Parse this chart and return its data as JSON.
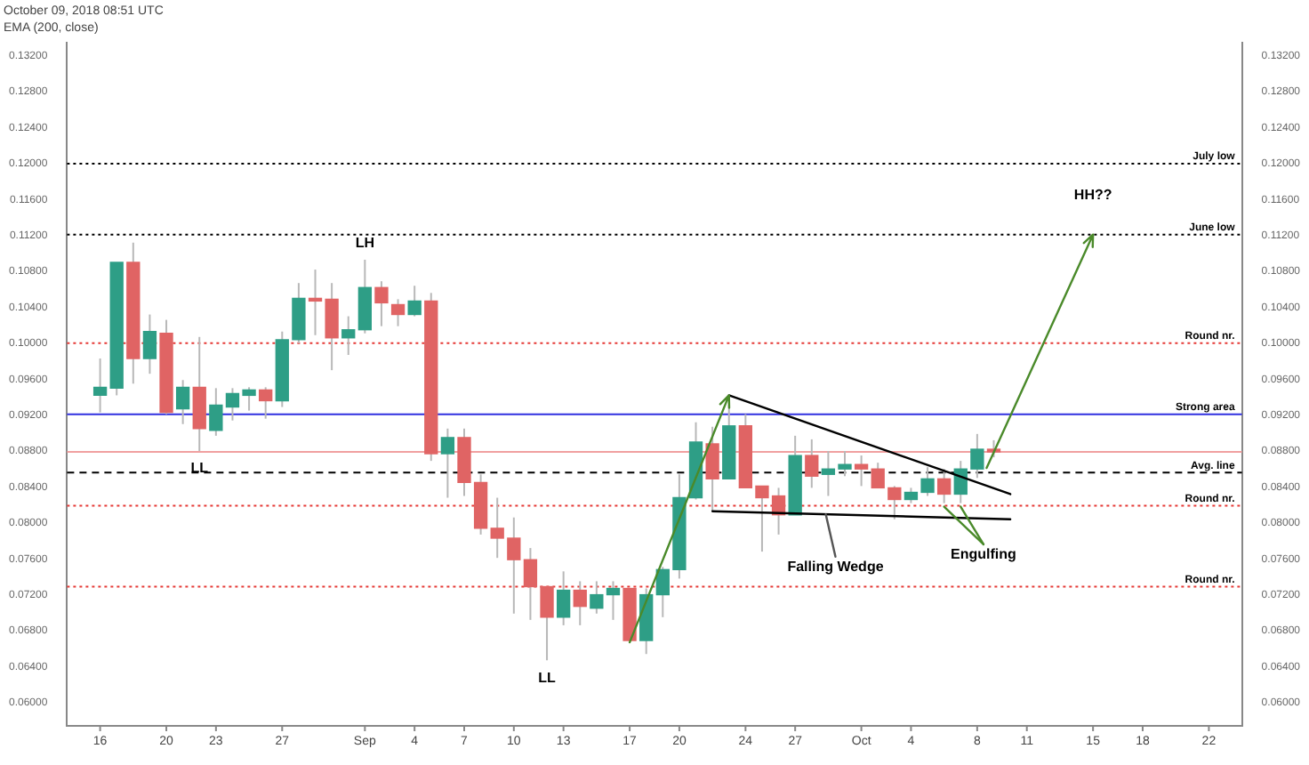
{
  "chart_data": {
    "type": "candlestick",
    "title": "October 09, 2018 08:51 UTC",
    "subtitle": "EMA (200, close)",
    "x": [
      "2018-08-16",
      "2018-08-17",
      "2018-08-18",
      "2018-08-19",
      "2018-08-20",
      "2018-08-21",
      "2018-08-22",
      "2018-08-23",
      "2018-08-24",
      "2018-08-25",
      "2018-08-26",
      "2018-08-27",
      "2018-08-28",
      "2018-08-29",
      "2018-08-30",
      "2018-08-31",
      "2018-09-01",
      "2018-09-02",
      "2018-09-03",
      "2018-09-04",
      "2018-09-05",
      "2018-09-06",
      "2018-09-07",
      "2018-09-08",
      "2018-09-09",
      "2018-09-10",
      "2018-09-11",
      "2018-09-12",
      "2018-09-13",
      "2018-09-14",
      "2018-09-15",
      "2018-09-16",
      "2018-09-17",
      "2018-09-18",
      "2018-09-19",
      "2018-09-20",
      "2018-09-21",
      "2018-09-22",
      "2018-09-23",
      "2018-09-24",
      "2018-09-25",
      "2018-09-26",
      "2018-09-27",
      "2018-09-28",
      "2018-09-29",
      "2018-09-30",
      "2018-10-01",
      "2018-10-02",
      "2018-10-03",
      "2018-10-04",
      "2018-10-05",
      "2018-10-06",
      "2018-10-07",
      "2018-10-08",
      "2018-10-09"
    ],
    "ohlc": [
      [
        0.0942,
        0.0983,
        0.0923,
        0.0951
      ],
      [
        0.095,
        0.109,
        0.0942,
        0.109
      ],
      [
        0.109,
        0.1112,
        0.0955,
        0.0983
      ],
      [
        0.0983,
        0.1032,
        0.0966,
        0.1013
      ],
      [
        0.1011,
        0.1026,
        0.0921,
        0.0923
      ],
      [
        0.0927,
        0.0959,
        0.091,
        0.0951
      ],
      [
        0.0951,
        0.1007,
        0.088,
        0.0905
      ],
      [
        0.0903,
        0.095,
        0.0897,
        0.0931
      ],
      [
        0.0929,
        0.095,
        0.0914,
        0.0944
      ],
      [
        0.0942,
        0.0951,
        0.0925,
        0.0948
      ],
      [
        0.0948,
        0.0951,
        0.0916,
        0.0936
      ],
      [
        0.0936,
        0.1013,
        0.0929,
        0.1004
      ],
      [
        0.1004,
        0.1067,
        0.1,
        0.105
      ],
      [
        0.105,
        0.1082,
        0.1009,
        0.1047
      ],
      [
        0.1049,
        0.1067,
        0.097,
        0.1006
      ],
      [
        0.1006,
        0.103,
        0.0987,
        0.1015
      ],
      [
        0.1015,
        0.1093,
        0.1011,
        0.1062
      ],
      [
        0.1062,
        0.1069,
        0.1019,
        0.1045
      ],
      [
        0.1043,
        0.1049,
        0.1019,
        0.1032
      ],
      [
        0.1032,
        0.1064,
        0.103,
        0.1047
      ],
      [
        0.1047,
        0.1056,
        0.0869,
        0.0877
      ],
      [
        0.0877,
        0.0905,
        0.0828,
        0.0895
      ],
      [
        0.0895,
        0.0905,
        0.083,
        0.0845
      ],
      [
        0.0845,
        0.0854,
        0.0787,
        0.0794
      ],
      [
        0.0794,
        0.0828,
        0.0761,
        0.0783
      ],
      [
        0.0783,
        0.0806,
        0.0699,
        0.0759
      ],
      [
        0.0759,
        0.0772,
        0.0692,
        0.0729
      ],
      [
        0.0729,
        0.0729,
        0.0647,
        0.0695
      ],
      [
        0.0695,
        0.0746,
        0.0686,
        0.0725
      ],
      [
        0.0725,
        0.0735,
        0.0686,
        0.0707
      ],
      [
        0.0705,
        0.0735,
        0.0699,
        0.072
      ],
      [
        0.072,
        0.0735,
        0.0692,
        0.0727
      ],
      [
        0.0727,
        0.0727,
        0.0667,
        0.0669
      ],
      [
        0.0669,
        0.0727,
        0.0654,
        0.072
      ],
      [
        0.072,
        0.0751,
        0.0695,
        0.0748
      ],
      [
        0.0748,
        0.0854,
        0.0738,
        0.0828
      ],
      [
        0.0828,
        0.0912,
        0.0826,
        0.089
      ],
      [
        0.0888,
        0.0907,
        0.0813,
        0.0849
      ],
      [
        0.0849,
        0.0942,
        0.0849,
        0.0908
      ],
      [
        0.0908,
        0.0921,
        0.0839,
        0.0839
      ],
      [
        0.0841,
        0.0841,
        0.0768,
        0.0828
      ],
      [
        0.083,
        0.0839,
        0.0787,
        0.0809
      ],
      [
        0.0809,
        0.0897,
        0.0809,
        0.0875
      ],
      [
        0.0875,
        0.0893,
        0.0839,
        0.0852
      ],
      [
        0.0854,
        0.088,
        0.083,
        0.086
      ],
      [
        0.086,
        0.088,
        0.0852,
        0.0865
      ],
      [
        0.0865,
        0.0875,
        0.0841,
        0.086
      ],
      [
        0.086,
        0.0867,
        0.0839,
        0.0839
      ],
      [
        0.0839,
        0.0841,
        0.0804,
        0.0826
      ],
      [
        0.0826,
        0.0839,
        0.0822,
        0.0834
      ],
      [
        0.0834,
        0.0862,
        0.083,
        0.0849
      ],
      [
        0.0849,
        0.086,
        0.0822,
        0.0832
      ],
      [
        0.0832,
        0.0869,
        0.0822,
        0.086
      ],
      [
        0.086,
        0.0899,
        0.085,
        0.0882
      ],
      [
        0.0882,
        0.0892,
        0.0873,
        0.0879
      ]
    ],
    "colors": [
      "#2e9e86",
      "#2e9e86",
      "#e06464",
      "#2e9e86",
      "#e06464",
      "#2e9e86",
      "#e06464",
      "#2e9e86",
      "#2e9e86",
      "#2e9e86",
      "#e06464",
      "#2e9e86",
      "#2e9e86",
      "#e06464",
      "#e06464",
      "#2e9e86",
      "#2e9e86",
      "#e06464",
      "#e06464",
      "#2e9e86",
      "#e06464",
      "#2e9e86",
      "#e06464",
      "#e06464",
      "#e06464",
      "#e06464",
      "#e06464",
      "#e06464",
      "#2e9e86",
      "#e06464",
      "#2e9e86",
      "#2e9e86",
      "#e06464",
      "#2e9e86",
      "#2e9e86",
      "#2e9e86",
      "#2e9e86",
      "#e06464",
      "#2e9e86",
      "#e06464",
      "#e06464",
      "#e06464",
      "#2e9e86",
      "#e06464",
      "#2e9e86",
      "#2e9e86",
      "#e06464",
      "#e06464",
      "#e06464",
      "#2e9e86",
      "#2e9e86",
      "#e06464",
      "#2e9e86",
      "#2e9e86",
      "#e06464"
    ],
    "xlim": [
      "2018-08-14",
      "2018-10-24"
    ],
    "xticks": [
      {
        "value": "2018-08-16",
        "label": "16"
      },
      {
        "value": "2018-08-20",
        "label": "20"
      },
      {
        "value": "2018-08-23",
        "label": "23"
      },
      {
        "value": "2018-08-27",
        "label": "27"
      },
      {
        "value": "2018-09-01",
        "label": "Sep"
      },
      {
        "value": "2018-09-04",
        "label": "4"
      },
      {
        "value": "2018-09-07",
        "label": "7"
      },
      {
        "value": "2018-09-10",
        "label": "10"
      },
      {
        "value": "2018-09-13",
        "label": "13"
      },
      {
        "value": "2018-09-17",
        "label": "17"
      },
      {
        "value": "2018-09-20",
        "label": "20"
      },
      {
        "value": "2018-09-24",
        "label": "24"
      },
      {
        "value": "2018-09-27",
        "label": "27"
      },
      {
        "value": "2018-10-01",
        "label": "Oct"
      },
      {
        "value": "2018-10-04",
        "label": "4"
      },
      {
        "value": "2018-10-08",
        "label": "8"
      },
      {
        "value": "2018-10-11",
        "label": "11"
      },
      {
        "value": "2018-10-15",
        "label": "15"
      },
      {
        "value": "2018-10-18",
        "label": "18"
      },
      {
        "value": "2018-10-22",
        "label": "22"
      }
    ],
    "ylim": [
      0.0574,
      0.1335
    ],
    "yticks": [
      {
        "value": 0.06,
        "label": "0.06000"
      },
      {
        "value": 0.064,
        "label": "0.06400"
      },
      {
        "value": 0.068,
        "label": "0.06800"
      },
      {
        "value": 0.072,
        "label": "0.07200"
      },
      {
        "value": 0.076,
        "label": "0.07600"
      },
      {
        "value": 0.08,
        "label": "0.08000"
      },
      {
        "value": 0.084,
        "label": "0.08400"
      },
      {
        "value": 0.088,
        "label": "0.08800"
      },
      {
        "value": 0.092,
        "label": "0.09200"
      },
      {
        "value": 0.096,
        "label": "0.09600"
      },
      {
        "value": 0.1,
        "label": "0.10000"
      },
      {
        "value": 0.104,
        "label": "0.10400"
      },
      {
        "value": 0.108,
        "label": "0.10800"
      },
      {
        "value": 0.112,
        "label": "0.11200"
      },
      {
        "value": 0.116,
        "label": "0.11600"
      },
      {
        "value": 0.12,
        "label": "0.12000"
      },
      {
        "value": 0.124,
        "label": "0.12400"
      },
      {
        "value": 0.128,
        "label": "0.12800"
      },
      {
        "value": 0.132,
        "label": "0.13200"
      }
    ],
    "y2lim": [
      0.0574,
      0.1335
    ],
    "y2ticks": [
      {
        "value": 0.06,
        "label": "0.06000"
      },
      {
        "value": 0.064,
        "label": "0.06400"
      },
      {
        "value": 0.068,
        "label": "0.06800"
      },
      {
        "value": 0.072,
        "label": "0.07200"
      },
      {
        "value": 0.076,
        "label": "0.07600"
      },
      {
        "value": 0.08,
        "label": "0.08000"
      },
      {
        "value": 0.084,
        "label": "0.08400"
      },
      {
        "value": 0.088,
        "label": "0.08800"
      },
      {
        "value": 0.092,
        "label": "0.09200"
      },
      {
        "value": 0.096,
        "label": "0.09600"
      },
      {
        "value": 0.1,
        "label": "0.10000"
      },
      {
        "value": 0.104,
        "label": "0.10400"
      },
      {
        "value": 0.108,
        "label": "0.10800"
      },
      {
        "value": 0.112,
        "label": "0.11200"
      },
      {
        "value": 0.116,
        "label": "0.11600"
      },
      {
        "value": 0.12,
        "label": "0.12000"
      },
      {
        "value": 0.124,
        "label": "0.12400"
      },
      {
        "value": 0.128,
        "label": "0.12800"
      },
      {
        "value": 0.132,
        "label": "0.13200"
      }
    ],
    "ref_lines": [
      {
        "axis": "y",
        "value": 0.12,
        "label": "July low",
        "color": "#000000",
        "line_style": "dotted"
      },
      {
        "axis": "y",
        "value": 0.1121,
        "label": "June low",
        "color": "#000000",
        "line_style": "dotted"
      },
      {
        "axis": "y",
        "value": 0.1,
        "label": "Round nr.",
        "color": "#e53935",
        "line_style": "dotted"
      },
      {
        "axis": "y",
        "value": 0.0921,
        "label": "Strong area",
        "color": "#3030e0",
        "line_style": "solid"
      },
      {
        "axis": "y",
        "value": 0.0879,
        "label": null,
        "color": "#f0a0a0",
        "line_style": "solid"
      },
      {
        "axis": "y",
        "value": 0.0856,
        "label": "Avg. line",
        "color": "#000000",
        "line_style": "dashed"
      },
      {
        "axis": "y",
        "value": 0.0819,
        "label": "Round nr.",
        "color": "#e53935",
        "line_style": "dotted"
      },
      {
        "axis": "y",
        "value": 0.0729,
        "label": "Round nr.",
        "color": "#e53935",
        "line_style": "dotted"
      }
    ],
    "series": [
      {
        "type": "line",
        "x": [
          "2018-09-23",
          "2018-10-10"
        ],
        "values": [
          0.0942,
          0.0832
        ],
        "color": "#000000"
      },
      {
        "type": "line",
        "x": [
          "2018-09-22",
          "2018-10-10"
        ],
        "values": [
          0.0813,
          0.0804
        ],
        "color": "#000000"
      }
    ],
    "annotations": [
      {
        "text": "LH",
        "x": "2018-09-01",
        "y": 0.1093
      },
      {
        "text": "LL",
        "x": "2018-08-22",
        "y": 0.088
      },
      {
        "text": "LL",
        "x": "2018-09-12",
        "y": 0.0647
      },
      {
        "text": "HH??",
        "x": "2018-10-15",
        "y": 0.1121
      },
      "Falling Wedge",
      "Engulfing"
    ],
    "grid": false,
    "legend": false
  }
}
